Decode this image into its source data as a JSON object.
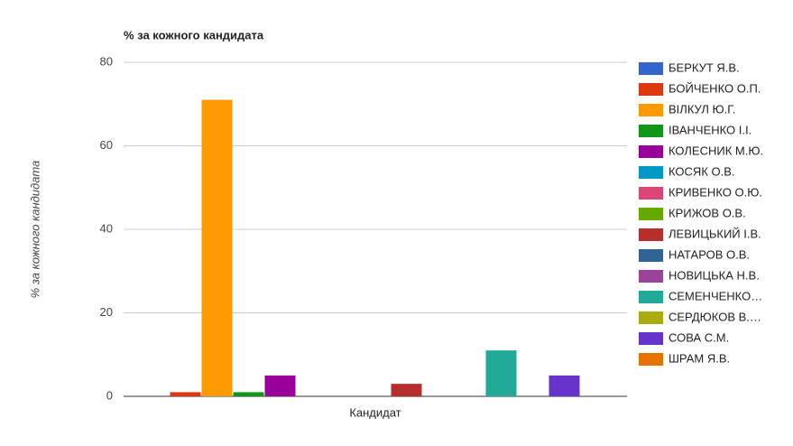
{
  "chart_data": {
    "type": "bar",
    "title": "% за кожного кандидата",
    "y_label": "% за кожного кандидата",
    "x_label": "Кандидат",
    "categories": [
      "Кандидат"
    ],
    "ylim": [
      0,
      80
    ],
    "yticks": [
      0,
      20,
      40,
      60,
      80
    ],
    "grid": true,
    "legend": "right",
    "series": [
      {
        "name": "БЕРКУТ Я.В.",
        "color": "#3366cc",
        "values": [
          0
        ]
      },
      {
        "name": "БОЙЧЕНКО О.П.",
        "color": "#dc3912",
        "values": [
          1
        ]
      },
      {
        "name": "ВІЛКУЛ Ю.Г.",
        "color": "#ff9900",
        "values": [
          71
        ]
      },
      {
        "name": "ІВАНЧЕНКО І.І.",
        "color": "#109618",
        "values": [
          1
        ]
      },
      {
        "name": "КОЛЕСНИК М.Ю.",
        "color": "#990099",
        "values": [
          5
        ]
      },
      {
        "name": "КОСЯК О.В.",
        "color": "#0099c6",
        "values": [
          0
        ]
      },
      {
        "name": "КРИВЕНКО О.Ю.",
        "color": "#dd4477",
        "values": [
          0
        ]
      },
      {
        "name": "КРИЖОВ О.В.",
        "color": "#66aa00",
        "values": [
          0
        ]
      },
      {
        "name": "ЛЕВИЦЬКИЙ І.В.",
        "color": "#b82e2e",
        "values": [
          3
        ]
      },
      {
        "name": "НАТАРОВ О.В.",
        "color": "#316395",
        "values": [
          0
        ]
      },
      {
        "name": "НОВИЦЬКА Н.В.",
        "color": "#994499",
        "values": [
          0
        ]
      },
      {
        "name": "СЕМЕНЧЕНКО…",
        "color": "#22aa99",
        "values": [
          11
        ]
      },
      {
        "name": "СЕРДЮКОВ В.…",
        "color": "#aaaa11",
        "values": [
          0
        ]
      },
      {
        "name": "СОВА С.М.",
        "color": "#6633cc",
        "values": [
          5
        ]
      },
      {
        "name": "ШРАМ Я.В.",
        "color": "#e67300",
        "values": [
          0
        ]
      }
    ]
  }
}
